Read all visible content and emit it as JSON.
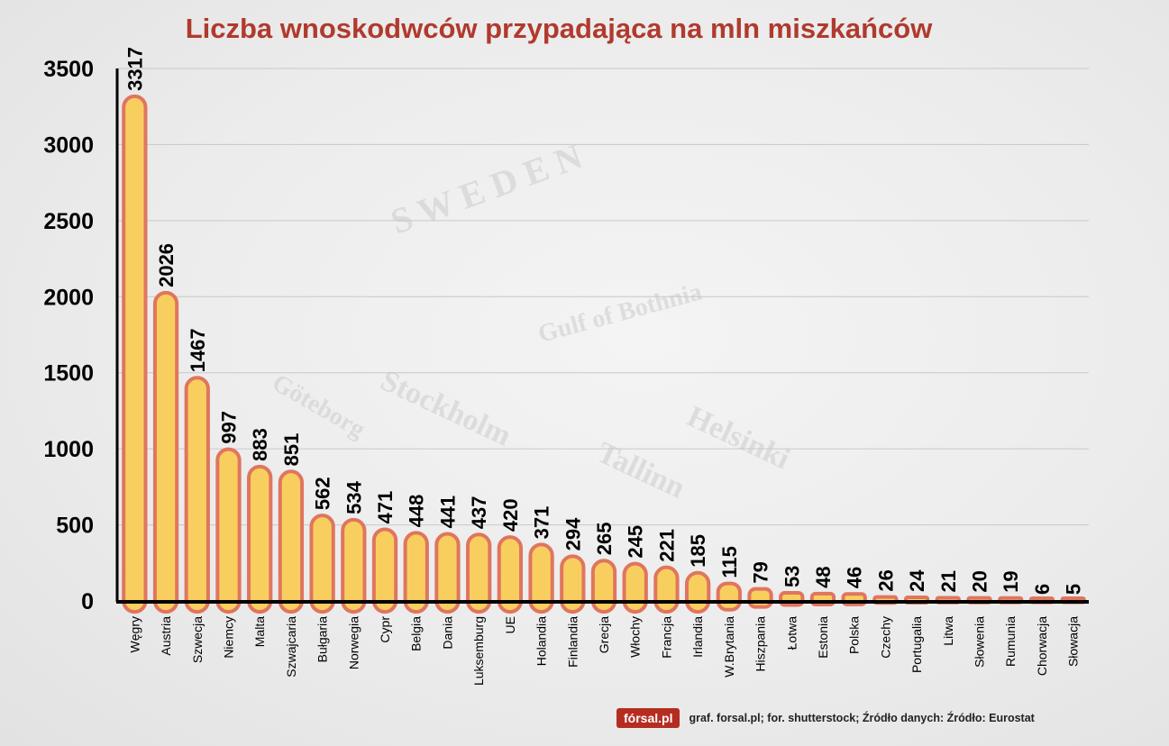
{
  "chart_data": {
    "type": "bar",
    "title": "Liczba wnoskodwców przypadająca na mln miszkańców",
    "xlabel": "",
    "ylabel": "",
    "ylim": [
      0,
      3500
    ],
    "yticks": [
      0,
      500,
      1000,
      1500,
      2000,
      2500,
      3000,
      3500
    ],
    "grid": true,
    "categories": [
      "Węgry",
      "Austria",
      "Szwecja",
      "Niemcy",
      "Malta",
      "Szwajcaria",
      "Bułgaria",
      "Norwegia",
      "Cypr",
      "Belgia",
      "Dania",
      "Luksemburg",
      "UE",
      "Holandia",
      "Finlandia",
      "Grecja",
      "Włochy",
      "Francja",
      "Irlandia",
      "W.Brytania",
      "Hiszpania",
      "Łotwa",
      "Estonia",
      "Polska",
      "Czechy",
      "Portugalia",
      "Litwa",
      "Słowenia",
      "Rumunia",
      "Chorwacja",
      "Słowacja"
    ],
    "values": [
      3317,
      2026,
      1467,
      997,
      883,
      851,
      562,
      534,
      471,
      448,
      441,
      437,
      420,
      371,
      294,
      265,
      245,
      221,
      185,
      115,
      79,
      53,
      48,
      46,
      26,
      24,
      21,
      20,
      19,
      6,
      5
    ],
    "colors": {
      "bar_fill": "#f8cf5f",
      "bar_stroke": "#e0755f",
      "title": "#b03a2e"
    }
  },
  "footer": {
    "logo": "fórsal.pl",
    "credit": "graf. forsal.pl; for. shutterstock;  Źródło danych:  Źródło: Eurostat"
  }
}
